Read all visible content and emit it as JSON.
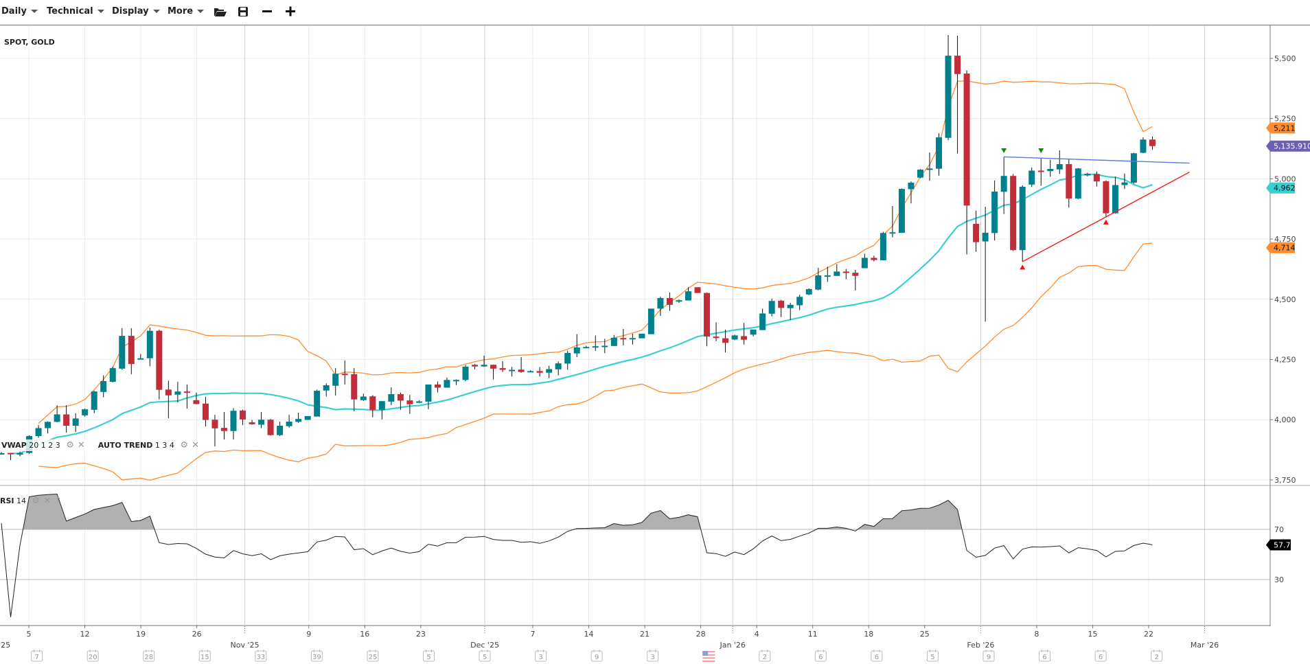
{
  "toolbar": {
    "interval": "Daily",
    "technical": "Technical",
    "display": "Display",
    "more": "More"
  },
  "legend": {
    "symbol": "SPOT, GOLD",
    "vwap_name": "VWAP",
    "vwap_params": "20 1 2 3",
    "autotrend_name": "AUTO TREND",
    "autotrend_params": "1 3 4",
    "rsi_name": "RSI",
    "rsi_params": "14"
  },
  "colors": {
    "up": "#00808c",
    "down": "#c32d3a",
    "band": "#ff8c2e",
    "vwap": "#3ccfcf",
    "trend_resistance": "#5a78e0",
    "trend_support": "#f02020",
    "last_price": "#6a5fb0",
    "rsi_line": "#222222",
    "rsi_fill": "#b0b0b0"
  },
  "chart_data": {
    "type": "candlestick",
    "title": "SPOT, GOLD",
    "interval": "Daily",
    "price_axis": {
      "ticks": [
        3750,
        4000,
        4250,
        4500,
        4750,
        5000,
        5250,
        5500
      ],
      "tick_labels": [
        "3,750",
        "4,000",
        "4,250",
        "4,500",
        "4,750",
        "5,000",
        "5,250",
        "5,500"
      ]
    },
    "price_range": [
      3575,
      5640
    ],
    "price_tags": [
      {
        "label": "5,211",
        "value": 5211,
        "kind": "band"
      },
      {
        "label": "5,135.910",
        "value": 5135.91,
        "kind": "last_price"
      },
      {
        "label": "4,962",
        "value": 4962,
        "kind": "vwap"
      },
      {
        "label": "4,714",
        "value": 4714,
        "kind": "band"
      }
    ],
    "candle_fields": [
      "open",
      "high",
      "low",
      "close"
    ],
    "candles": [
      [
        3861,
        3866,
        3855,
        3861
      ],
      [
        3862,
        3862,
        3832,
        3858
      ],
      [
        3855,
        3868,
        3848,
        3862
      ],
      [
        3862,
        3935,
        3858,
        3932
      ],
      [
        3932,
        3978,
        3925,
        3965
      ],
      [
        3965,
        3993,
        3943,
        3991
      ],
      [
        3991,
        4060,
        3989,
        4022
      ],
      [
        4022,
        4060,
        3946,
        3975
      ],
      [
        3975,
        4027,
        3949,
        4005
      ],
      [
        4018,
        4046,
        4013,
        4043
      ],
      [
        4041,
        4120,
        4027,
        4117
      ],
      [
        4115,
        4184,
        4093,
        4160
      ],
      [
        4157,
        4220,
        4155,
        4214
      ],
      [
        4212,
        4380,
        4207,
        4348
      ],
      [
        4348,
        4380,
        4189,
        4231
      ],
      [
        4255,
        4273,
        4250,
        4255
      ],
      [
        4255,
        4383,
        4222,
        4369
      ],
      [
        4369,
        4374,
        4084,
        4124
      ],
      [
        4125,
        4162,
        4006,
        4101
      ],
      [
        4104,
        4157,
        4072,
        4117
      ],
      [
        4117,
        4146,
        4046,
        4113
      ],
      [
        4081,
        4112,
        4064,
        4065
      ],
      [
        4067,
        4095,
        3972,
        3999
      ],
      [
        4000,
        4020,
        3889,
        3964
      ],
      [
        3966,
        4032,
        3918,
        3953
      ],
      [
        3953,
        4048,
        3918,
        4037
      ],
      [
        4038,
        4041,
        3977,
        4001
      ],
      [
        3989,
        3999,
        3979,
        3981
      ],
      [
        3979,
        4032,
        3965,
        4000
      ],
      [
        4000,
        4003,
        3934,
        3936
      ],
      [
        3936,
        3992,
        3932,
        3975
      ],
      [
        3973,
        4020,
        3967,
        3992
      ],
      [
        3991,
        4029,
        3987,
        4003
      ],
      [
        3999,
        4015,
        3999,
        4015
      ],
      [
        4013,
        4125,
        4013,
        4120
      ],
      [
        4121,
        4151,
        4096,
        4143
      ],
      [
        4141,
        4214,
        4100,
        4191
      ],
      [
        4191,
        4246,
        4146,
        4187
      ],
      [
        4189,
        4214,
        4035,
        4084
      ],
      [
        4081,
        4108,
        4078,
        4096
      ],
      [
        4097,
        4102,
        4010,
        4041
      ],
      [
        4041,
        4077,
        4001,
        4077
      ],
      [
        4075,
        4134,
        4060,
        4106
      ],
      [
        4106,
        4113,
        4041,
        4079
      ],
      [
        4080,
        4103,
        4024,
        4064
      ],
      [
        4076,
        4080,
        4069,
        4076
      ],
      [
        4075,
        4146,
        4044,
        4146
      ],
      [
        4146,
        4159,
        4113,
        4133
      ],
      [
        4133,
        4175,
        4133,
        4165
      ],
      [
        4165,
        4167,
        4144,
        4165
      ],
      [
        4165,
        4227,
        4160,
        4220
      ],
      [
        4228,
        4231,
        4209,
        4221
      ],
      [
        4221,
        4266,
        4219,
        4228
      ],
      [
        4228,
        4229,
        4167,
        4212
      ],
      [
        4214,
        4243,
        4198,
        4207
      ],
      [
        4207,
        4219,
        4179,
        4207
      ],
      [
        4208,
        4260,
        4195,
        4198
      ],
      [
        4202,
        4205,
        4198,
        4202
      ],
      [
        4202,
        4219,
        4179,
        4195
      ],
      [
        4195,
        4224,
        4172,
        4210
      ],
      [
        4209,
        4241,
        4184,
        4234
      ],
      [
        4233,
        4286,
        4207,
        4277
      ],
      [
        4275,
        4355,
        4260,
        4300
      ],
      [
        4302,
        4307,
        4300,
        4302
      ],
      [
        4305,
        4350,
        4286,
        4305
      ],
      [
        4304,
        4336,
        4276,
        4307
      ],
      [
        4306,
        4352,
        4305,
        4340
      ],
      [
        4339,
        4377,
        4309,
        4335
      ],
      [
        4336,
        4357,
        4312,
        4339
      ],
      [
        4338,
        4357,
        4338,
        4357
      ],
      [
        4355,
        4461,
        4355,
        4461
      ],
      [
        4461,
        4511,
        4431,
        4505
      ],
      [
        4505,
        4528,
        4452,
        4477
      ],
      [
        4490,
        4499,
        4485,
        4496
      ],
      [
        4495,
        4550,
        4495,
        4533
      ],
      [
        4550,
        4550,
        4526,
        4526
      ],
      [
        4526,
        4528,
        4305,
        4345
      ],
      [
        4345,
        4404,
        4326,
        4339
      ],
      [
        4338,
        4374,
        4279,
        4319
      ],
      [
        4333,
        4353,
        4330,
        4350
      ],
      [
        4347,
        4402,
        4312,
        4332
      ],
      [
        4353,
        4374,
        4346,
        4374
      ],
      [
        4372,
        4461,
        4372,
        4441
      ],
      [
        4440,
        4502,
        4429,
        4493
      ],
      [
        4494,
        4497,
        4426,
        4464
      ],
      [
        4463,
        4485,
        4414,
        4477
      ],
      [
        4475,
        4519,
        4455,
        4510
      ],
      [
        4520,
        4545,
        4517,
        4542
      ],
      [
        4540,
        4630,
        4537,
        4599
      ],
      [
        4599,
        4635,
        4572,
        4599
      ],
      [
        4597,
        4645,
        4597,
        4615
      ],
      [
        4615,
        4626,
        4583,
        4609
      ],
      [
        4610,
        4622,
        4537,
        4597
      ],
      [
        4629,
        4689,
        4629,
        4672
      ],
      [
        4672,
        4681,
        4657,
        4663
      ],
      [
        4662,
        4780,
        4661,
        4775
      ],
      [
        4775,
        4887,
        4757,
        4778
      ],
      [
        4776,
        4960,
        4775,
        4958
      ],
      [
        4957,
        4989,
        4898,
        4984
      ],
      [
        5005,
        5040,
        5003,
        5038
      ],
      [
        5037,
        5109,
        4992,
        5043
      ],
      [
        5042,
        5189,
        5013,
        5172
      ],
      [
        5170,
        5597,
        5160,
        5511
      ],
      [
        5511,
        5594,
        5105,
        5435
      ],
      [
        5437,
        5450,
        4686,
        4889
      ],
      [
        4813,
        4868,
        4697,
        4737
      ],
      [
        4740,
        4884,
        4407,
        4776
      ],
      [
        4775,
        4993,
        4744,
        4947
      ],
      [
        4946,
        5091,
        4854,
        5012
      ],
      [
        5012,
        5020,
        4700,
        4704
      ],
      [
        4704,
        4973,
        4656,
        4967
      ],
      [
        4976,
        5047,
        4966,
        5034
      ],
      [
        5034,
        5087,
        4971,
        5031
      ],
      [
        5032,
        5079,
        5009,
        5041
      ],
      [
        5039,
        5118,
        5020,
        5061
      ],
      [
        5061,
        5084,
        4880,
        4918
      ],
      [
        4918,
        5045,
        4915,
        5043
      ],
      [
        5014,
        5025,
        5010,
        5021
      ],
      [
        5020,
        5030,
        4968,
        4989
      ],
      [
        4990,
        4993,
        4840,
        4857
      ],
      [
        4857,
        5009,
        4855,
        4974
      ],
      [
        4974,
        5022,
        4958,
        4985
      ],
      [
        4984,
        5108,
        4980,
        5106
      ],
      [
        5108,
        5172,
        5106,
        5163
      ],
      [
        5163,
        5175,
        5121,
        5135.91
      ]
    ],
    "trend_lines": [
      {
        "name": "resistance",
        "from": {
          "bar": 108,
          "price": 5091
        },
        "to": {
          "bar": 128,
          "price": 5065
        }
      },
      {
        "name": "support",
        "from": {
          "bar": 110,
          "price": 4656
        },
        "to": {
          "bar": 128,
          "price": 5028
        }
      }
    ],
    "pivot_markers": [
      {
        "bar": 108,
        "price": 5115,
        "type": "high"
      },
      {
        "bar": 112,
        "price": 5115,
        "type": "high"
      },
      {
        "bar": 110,
        "price": 4635,
        "type": "low"
      },
      {
        "bar": 119,
        "price": 4822,
        "type": "low"
      }
    ],
    "rsi": {
      "period": 14,
      "levels": [
        70,
        30
      ],
      "level_labels": [
        "70",
        "30"
      ],
      "last_label": "57.7",
      "last": 57.7
    },
    "x_axis": {
      "day_ticks": [
        {
          "date": "2025-10-05",
          "label": "5"
        },
        {
          "date": "2025-10-12",
          "label": "12"
        },
        {
          "date": "2025-10-19",
          "label": "19"
        },
        {
          "date": "2025-10-26",
          "label": "26"
        },
        {
          "date": "2025-11-09",
          "label": "9"
        },
        {
          "date": "2025-11-16",
          "label": "16"
        },
        {
          "date": "2025-11-23",
          "label": "23"
        },
        {
          "date": "2025-12-07",
          "label": "7"
        },
        {
          "date": "2025-12-14",
          "label": "14"
        },
        {
          "date": "2025-12-21",
          "label": "21"
        },
        {
          "date": "2025-12-28",
          "label": "28"
        },
        {
          "date": "2026-01-04",
          "label": "4"
        },
        {
          "date": "2026-01-11",
          "label": "11"
        },
        {
          "date": "2026-01-18",
          "label": "18"
        },
        {
          "date": "2026-01-25",
          "label": "25"
        },
        {
          "date": "2026-02-08",
          "label": "8"
        },
        {
          "date": "2026-02-15",
          "label": "15"
        },
        {
          "date": "2026-02-22",
          "label": "22"
        }
      ],
      "month_ticks": [
        {
          "date": "2025-10-01",
          "label": "Oct '25"
        },
        {
          "date": "2025-11-01",
          "label": "Nov '25"
        },
        {
          "date": "2025-12-01",
          "label": "Dec '25"
        },
        {
          "date": "2026-01-01",
          "label": "Jan '26"
        },
        {
          "date": "2026-02-01",
          "label": "Feb '26"
        },
        {
          "date": "2026-03-01",
          "label": "Mar '26"
        }
      ]
    },
    "event_calendar": {
      "first_week": "2025-10-06",
      "weekly_counts": [
        "7",
        "20",
        "28",
        "15",
        "33",
        "39",
        "25",
        "5",
        "5",
        "3",
        "9",
        "3",
        "US",
        "2",
        "6",
        "6",
        "5",
        "9",
        "6",
        "6",
        "2"
      ]
    }
  }
}
